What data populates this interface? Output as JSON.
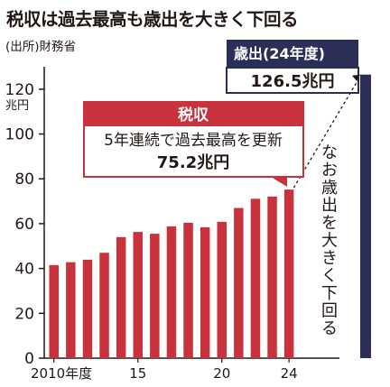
{
  "title": "税収は過去最高も歳出を大きく下回る",
  "source": "(出所)財務省",
  "colors": {
    "bar": "#c9323c",
    "spending_bar": "#2b2f57",
    "spending_label_bg": "#2b2f57",
    "axis": "#231815",
    "text": "#231815"
  },
  "chart_data": {
    "type": "bar",
    "x": [
      "2010",
      "2011",
      "2012",
      "2013",
      "2014",
      "2015",
      "2016",
      "2017",
      "2018",
      "2019",
      "2020",
      "2021",
      "2022",
      "2023",
      "2024"
    ],
    "xticks": [
      {
        "index": 0,
        "label": "2010年度"
      },
      {
        "index": 5,
        "label": "15"
      },
      {
        "index": 10,
        "label": "20"
      },
      {
        "index": 14,
        "label": "24"
      }
    ],
    "series": [
      {
        "name": "税収",
        "values": [
          41.5,
          42.8,
          43.9,
          47.0,
          54.0,
          56.3,
          55.5,
          58.8,
          60.4,
          58.4,
          60.8,
          67.0,
          71.1,
          72.1,
          75.2
        ]
      }
    ],
    "spending": {
      "label": "歳出(24年度)",
      "value": 126.5,
      "value_text": "126.5兆円"
    },
    "ylim": [
      0,
      130
    ],
    "yticks": [
      0,
      20,
      40,
      60,
      80,
      100,
      120
    ],
    "yunit": "兆円",
    "grid": false,
    "annotations": {
      "tax_box": {
        "title": "税収",
        "line1": "5年連続で過去最高を更新",
        "line2": "75.2兆円"
      },
      "vertical_note": [
        "な",
        "お",
        "歳",
        "出",
        "を",
        "大",
        "き",
        "く",
        "下",
        "回",
        "る"
      ]
    }
  }
}
